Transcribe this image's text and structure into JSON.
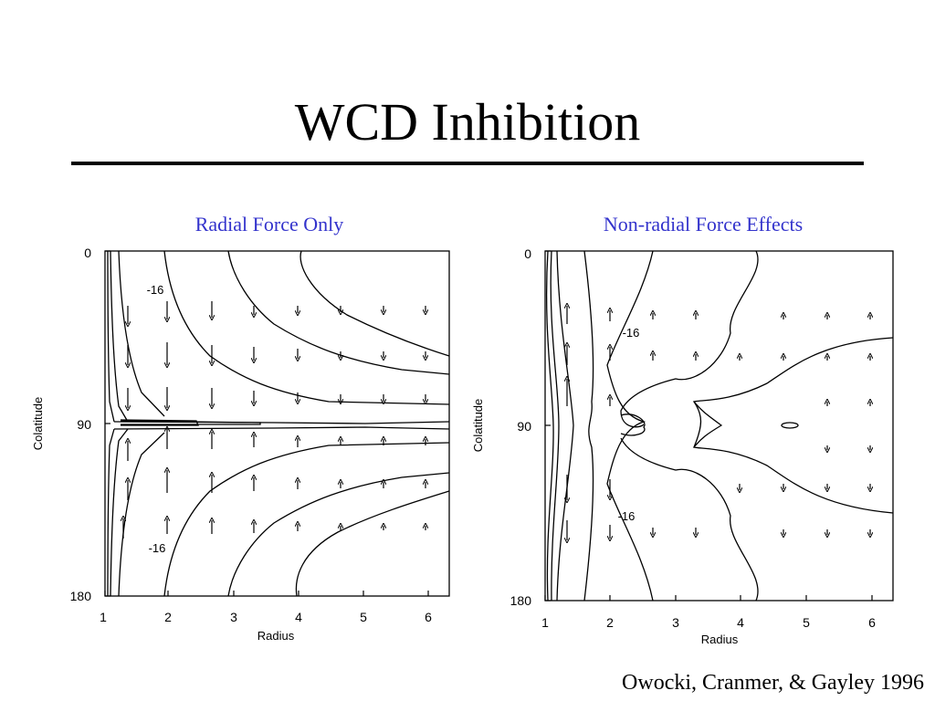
{
  "slide": {
    "title": "WCD Inhibition",
    "citation": "Owocki, Cranmer, & Gayley 1996"
  },
  "chart_data": [
    {
      "type": "contour",
      "title": "Radial Force Only",
      "xlabel": "Radius",
      "ylabel": "Colatitude",
      "xlim": [
        1,
        6.3
      ],
      "ylim": [
        0,
        180
      ],
      "x_ticks": [
        "1",
        "2",
        "3",
        "4",
        "5",
        "6"
      ],
      "y_ticks": [
        "0",
        "90",
        "180"
      ],
      "contour_labels": [
        {
          "text": "-16",
          "x": 1.8,
          "y": 20
        },
        {
          "text": "-16",
          "x": 1.8,
          "y": 155
        }
      ],
      "flow": "toward equator (colatitude 90)"
    },
    {
      "type": "contour",
      "title": "Non-radial Force Effects",
      "xlabel": "Radius",
      "ylabel": "Colatitude",
      "xlim": [
        1,
        6.3
      ],
      "ylim": [
        0,
        180
      ],
      "x_ticks": [
        "1",
        "2",
        "3",
        "4",
        "5",
        "6"
      ],
      "y_ticks": [
        "0",
        "90",
        "180"
      ],
      "contour_labels": [
        {
          "text": "-16",
          "x": 2.3,
          "y": 42
        },
        {
          "text": "-16",
          "x": 2.3,
          "y": 138
        }
      ],
      "flow": "away from equator (colatitude 90)"
    }
  ]
}
